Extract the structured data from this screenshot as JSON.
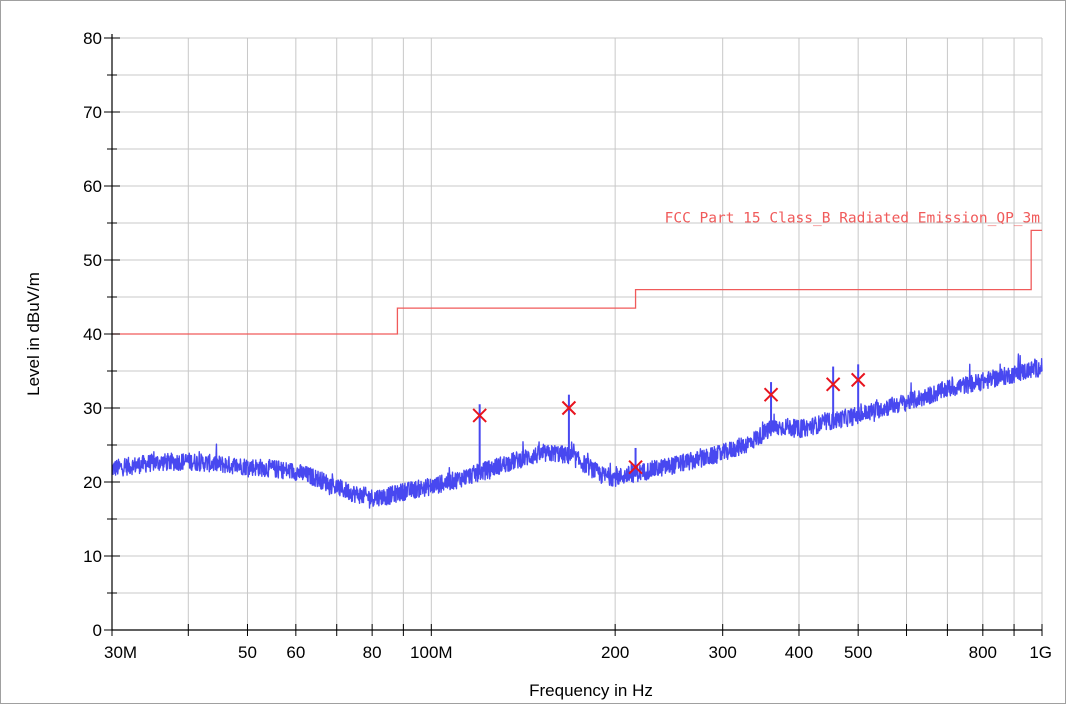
{
  "chart_data": {
    "type": "line",
    "title": "",
    "xlabel": "Frequency in Hz",
    "ylabel": "Level in dBuV/m",
    "x_scale": "log",
    "xlim": [
      30000000,
      1000000000
    ],
    "ylim": [
      0,
      80
    ],
    "grid": true,
    "x_major_ticks": [
      30000000,
      50000000,
      60000000,
      80000000,
      100000000,
      200000000,
      300000000,
      400000000,
      500000000,
      800000000,
      1000000000
    ],
    "x_tick_labels": [
      "30M",
      "50",
      "60",
      "80",
      "100M",
      "200",
      "300",
      "400",
      "500",
      "800",
      "1G"
    ],
    "x_gridlines": [
      30000000,
      40000000,
      50000000,
      60000000,
      70000000,
      80000000,
      90000000,
      100000000,
      200000000,
      300000000,
      400000000,
      500000000,
      600000000,
      700000000,
      800000000,
      900000000,
      1000000000
    ],
    "y_major_ticks": [
      0,
      10,
      20,
      30,
      40,
      50,
      60,
      70,
      80
    ],
    "y_tick_labels": [
      "0",
      "10",
      "20",
      "30",
      "40",
      "50",
      "60",
      "70",
      "80"
    ],
    "y_gridlines": [
      0,
      5,
      10,
      15,
      20,
      25,
      30,
      35,
      40,
      45,
      50,
      55,
      60,
      65,
      70,
      75,
      80
    ],
    "series": [
      {
        "name": "",
        "kind": "emission-trace",
        "color": "#4848f0",
        "x": [
          30000000,
          35000000,
          40000000,
          45000000,
          50000000,
          55000000,
          60000000,
          65000000,
          70000000,
          75000000,
          80000000,
          85000000,
          90000000,
          100000000,
          110000000,
          120000000,
          130000000,
          140000000,
          150000000,
          160000000,
          170000000,
          180000000,
          190000000,
          200000000,
          220000000,
          250000000,
          280000000,
          300000000,
          330000000,
          360000000,
          380000000,
          400000000,
          450000000,
          500000000,
          550000000,
          600000000,
          650000000,
          700000000,
          750000000,
          800000000,
          900000000,
          1000000000
        ],
        "y": [
          21.8,
          22.6,
          22.8,
          22.4,
          22.1,
          21.8,
          21.4,
          20.5,
          19.3,
          18.4,
          17.9,
          18.1,
          18.7,
          19.4,
          20.3,
          21.3,
          22.3,
          23.1,
          23.7,
          23.9,
          23.4,
          22.2,
          20.9,
          20.6,
          21.3,
          22.3,
          23.2,
          23.9,
          25.2,
          27.2,
          27.5,
          27.1,
          28.2,
          29.0,
          30.0,
          30.8,
          31.6,
          32.6,
          33.1,
          33.6,
          34.6,
          35.5
        ]
      },
      {
        "name": "FCC Part 15 Class_B Radiated Emission_QP_3m",
        "kind": "limit",
        "color": "#f05a5a",
        "steps": [
          {
            "x_start": 30000000,
            "x_end": 88000000,
            "y": 40.0
          },
          {
            "x_start": 88000000,
            "x_end": 216000000,
            "y": 43.5
          },
          {
            "x_start": 216000000,
            "x_end": 960000000,
            "y": 46.0
          },
          {
            "x_start": 960000000,
            "x_end": 1000000000,
            "y": 54.0
          }
        ]
      }
    ],
    "spikes": [
      {
        "x": 120000000,
        "y_top": 30.5
      },
      {
        "x": 168000000,
        "y_top": 31.8
      },
      {
        "x": 216000000,
        "y_top": 24.6
      },
      {
        "x": 360000000,
        "y_top": 33.5
      },
      {
        "x": 455000000,
        "y_top": 35.6
      },
      {
        "x": 500000000,
        "y_top": 35.9
      }
    ],
    "markers": {
      "symbol": "x",
      "color": "#e8141e",
      "points": [
        {
          "x": 120000000,
          "y": 29.0
        },
        {
          "x": 168000000,
          "y": 30.0
        },
        {
          "x": 216000000,
          "y": 22.0
        },
        {
          "x": 360000000,
          "y": 31.8
        },
        {
          "x": 455000000,
          "y": 33.2
        },
        {
          "x": 500000000,
          "y": 33.8
        }
      ]
    }
  }
}
